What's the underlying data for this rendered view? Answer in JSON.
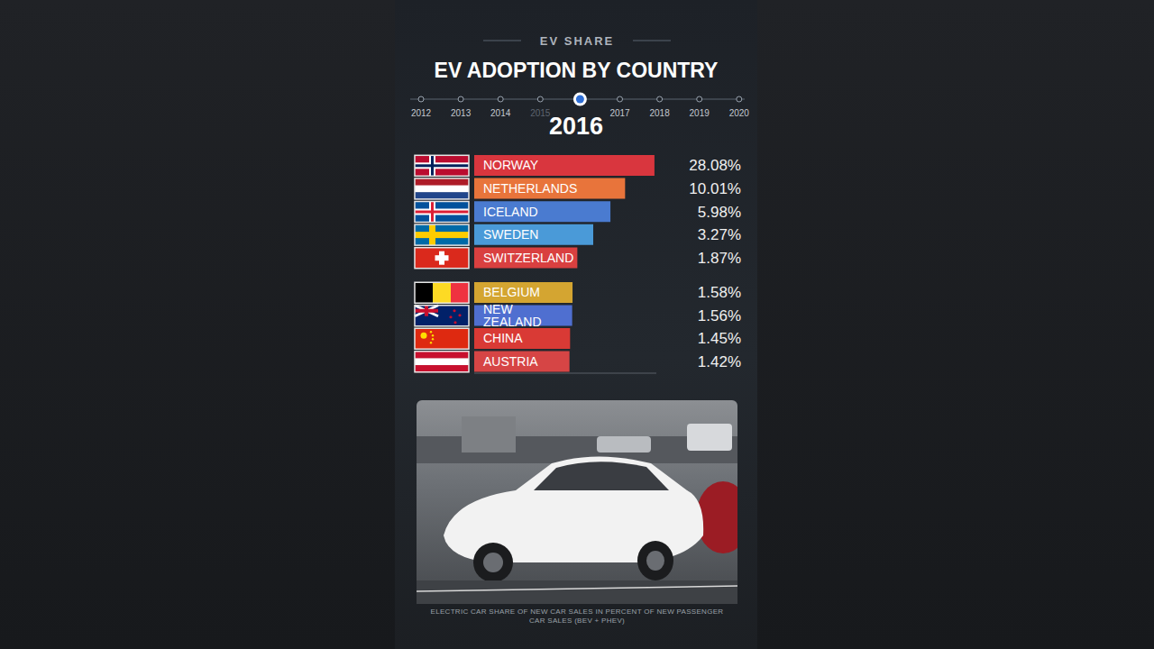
{
  "chart_data": {
    "type": "bar",
    "orientation": "horizontal",
    "subtitle": "EV SHARE",
    "title": "EV ADOPTION BY COUNTRY",
    "timeline": [
      2012,
      2013,
      2014,
      2015,
      2016,
      2017,
      2018,
      2019,
      2020
    ],
    "year": 2016,
    "categories": [
      "NORWAY",
      "NETHERLANDS",
      "ICELAND",
      "SWEDEN",
      "SWITZERLAND",
      "BELGIUM",
      "NEW ZEALAND",
      "CHINA",
      "AUSTRIA"
    ],
    "values": [
      28.08,
      10.01,
      5.98,
      3.27,
      1.87,
      1.58,
      1.56,
      1.45,
      1.42
    ],
    "value_labels": [
      "28.08%",
      "10.01%",
      "5.98%",
      "3.27%",
      "1.87%",
      "1.58%",
      "1.56%",
      "1.45%",
      "1.42%"
    ],
    "colors": [
      "#d9363e",
      "#e8743b",
      "#4a7bd0",
      "#4a9ad8",
      "#d94040",
      "#d4a531",
      "#4f6fd0",
      "#d93a35",
      "#d64545"
    ],
    "xlim": [
      0.05,
      30
    ],
    "log": "x",
    "data_labels": true,
    "tick_labels": false,
    "caption": "ELECTRIC CAR SHARE OF NEW CAR SALES IN PERCENT OF NEW PASSENGER CAR SALES (BEV + PHEV)"
  }
}
